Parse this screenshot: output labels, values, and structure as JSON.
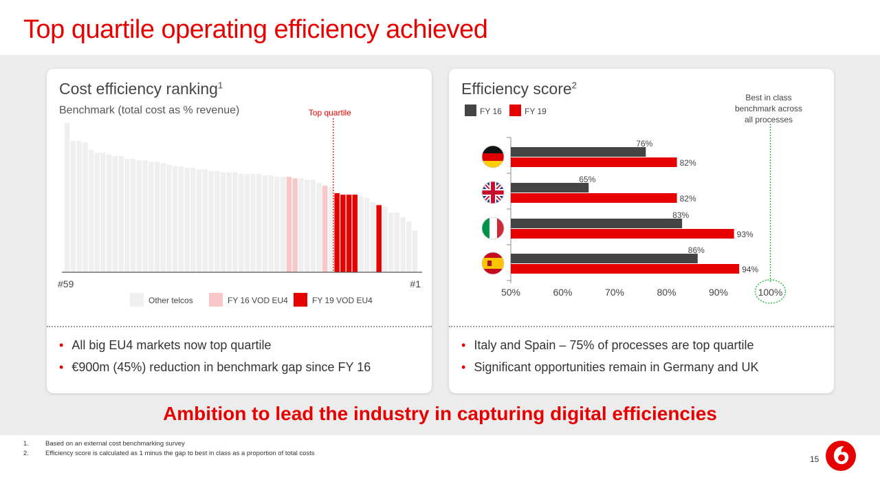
{
  "title": "Top quartile operating efficiency achieved",
  "left_panel": {
    "title": "Cost efficiency ranking",
    "title_sup": "1",
    "subtitle": "Benchmark (total cost as % revenue)",
    "bullets": [
      "All big EU4 markets now top quartile",
      "€900m (45%) reduction in benchmark gap since FY 16"
    ]
  },
  "right_panel": {
    "title": "Efficiency score",
    "title_sup": "2",
    "bullets": [
      "Italy and Spain – 75% of processes are top quartile",
      "Significant opportunities remain in Germany and UK"
    ]
  },
  "ambition": "Ambition to lead the industry in capturing digital efficiencies",
  "footnotes": [
    {
      "num": "1.",
      "text": "Based on an external cost benchmarking survey"
    },
    {
      "num": "2.",
      "text": "Efficiency score is calculated as 1 minus the gap to best in class as a proportion of total costs"
    }
  ],
  "page_number": "15",
  "colors": {
    "accent": "#e60000",
    "other": "#efefef",
    "fy16_vod": "#f8c8c8",
    "fy19_vod": "#e60000",
    "fy16": "#444444"
  },
  "chart_data": [
    {
      "type": "bar",
      "subtitle": "Benchmark (total cost as % revenue)",
      "axis_start_label": "#59",
      "axis_end_label": "#1",
      "marker_label": "Top quartile",
      "marker_after_rank_from_left": 45,
      "legend": [
        "Other telcos",
        "FY 16 VOD EU4",
        "FY 19 VOD EU4"
      ],
      "categories_note": "59 telcos ranked from #59 (left) to #1 (right)",
      "values": [
        100,
        88,
        88,
        87,
        82,
        80,
        80,
        79,
        78,
        78,
        76,
        76,
        75,
        75,
        74,
        74,
        73,
        72,
        71,
        71,
        70,
        70,
        69,
        69,
        68,
        68,
        67,
        67,
        67,
        66,
        66,
        66,
        66,
        65,
        65,
        64,
        64,
        64,
        63,
        63,
        62,
        62,
        60,
        58,
        57,
        53,
        52,
        52,
        52,
        51,
        50,
        47,
        45,
        44,
        40,
        40,
        37,
        34,
        28
      ],
      "groups": [
        "other",
        "other",
        "other",
        "other",
        "other",
        "other",
        "other",
        "other",
        "other",
        "other",
        "other",
        "other",
        "other",
        "other",
        "other",
        "other",
        "other",
        "other",
        "other",
        "other",
        "other",
        "other",
        "other",
        "other",
        "other",
        "other",
        "other",
        "other",
        "other",
        "other",
        "other",
        "other",
        "other",
        "other",
        "other",
        "other",
        "other",
        "fy16",
        "fy16",
        "other",
        "other",
        "other",
        "other",
        "fy16",
        "other",
        "fy19",
        "fy19",
        "fy19",
        "fy19",
        "other",
        "other",
        "other",
        "fy19",
        "other",
        "other",
        "other",
        "other",
        "other",
        "other"
      ]
    },
    {
      "type": "bar",
      "orientation": "horizontal",
      "categories": [
        "Germany",
        "UK",
        "Italy",
        "Spain"
      ],
      "series": [
        {
          "name": "FY 16",
          "values": [
            76,
            65,
            83,
            86
          ],
          "labels": [
            "76%",
            "65%",
            "83%",
            "86%"
          ]
        },
        {
          "name": "FY 19",
          "values": [
            82,
            82,
            93,
            94
          ],
          "labels": [
            "82%",
            "82%",
            "93%",
            "94%"
          ]
        }
      ],
      "xticks": [
        "50%",
        "60%",
        "70%",
        "80%",
        "90%",
        "100%"
      ],
      "xlim": [
        50,
        100
      ],
      "annotation": [
        "Best in class",
        "benchmark across",
        "all processes"
      ]
    }
  ]
}
